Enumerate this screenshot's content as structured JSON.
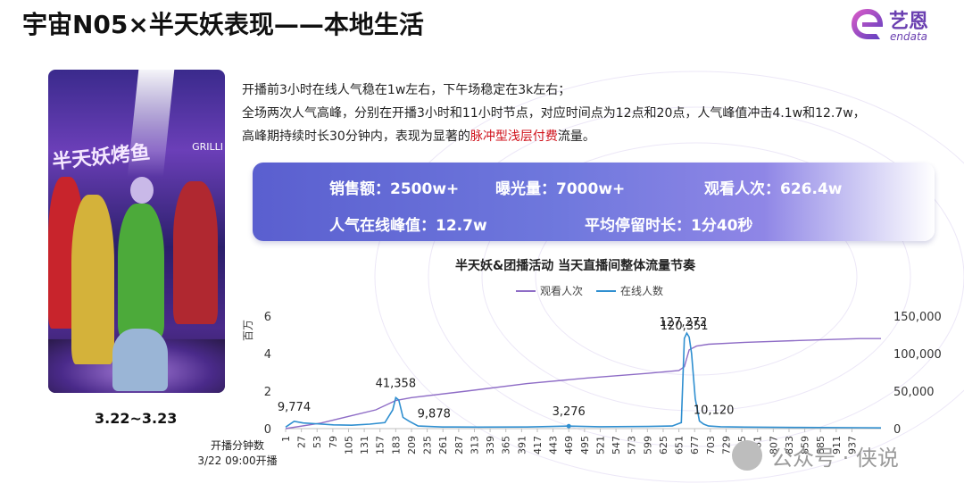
{
  "header": {
    "title": "宇宙N05×半天妖表现——本地生活",
    "logo_cn": "艺恩",
    "logo_en": "endata"
  },
  "photo": {
    "sign_text": "半天妖烤鱼",
    "grill_text": "GRILLI",
    "date_label": "3.22~3.23"
  },
  "description": {
    "line1": "开播前3小时在线人气稳在1w左右，下午场稳定在3k左右；",
    "line2": "全场两次人气高峰，分别在开播3小时和11小时节点，对应时间点为12点和20点，人气峰值冲击4.1w和12.7w，",
    "line3_a": "高峰期持续时长30分钟内，表现为显著的",
    "line3_hl": "脉冲型浅层付费",
    "line3_b": "流量。"
  },
  "kpis": {
    "sales": "销售额：2500w+",
    "exposure": "曝光量：7000w+",
    "views": "观看人次：626.4w",
    "peak_online": "人气在线峰值：12.7w",
    "avg_stay": "平均停留时长：1分40秒"
  },
  "watermark": {
    "text": "公众号 · 侠说"
  },
  "colors": {
    "kpi_band": "#6f78dd",
    "views_line": "#8e6cc6",
    "online_line": "#2f8fd0",
    "highlight": "#d0121b"
  },
  "chart_data": {
    "type": "line",
    "title": "半天妖&团播活动 当天直播间整体流量节奏",
    "legend": [
      "观看人次",
      "在线人数"
    ],
    "legend_position": "top",
    "y_left": {
      "unit_label": "百万",
      "range": [
        0,
        6
      ],
      "ticks": [
        "0",
        "2",
        "4",
        "6"
      ]
    },
    "y_right": {
      "range": [
        0,
        150000
      ],
      "ticks": [
        "0",
        "50,000",
        "100,000",
        "150,000"
      ]
    },
    "x_axis": {
      "label_line1": "开播分钟数",
      "label_line2": "3/22 09:00开播",
      "range": [
        1,
        985
      ],
      "ticks": [
        "1",
        "27",
        "53",
        "79",
        "105",
        "131",
        "157",
        "183",
        "209",
        "235",
        "261",
        "287",
        "313",
        "339",
        "365",
        "391",
        "417",
        "443",
        "469",
        "495",
        "521",
        "547",
        "573",
        "599",
        "625",
        "651",
        "677",
        "703",
        "729",
        "755",
        "781",
        "807",
        "833",
        "859",
        "885",
        "911",
        "937"
      ]
    },
    "series": [
      {
        "name": "观看人次",
        "axis": "left",
        "x": [
          1,
          60,
          150,
          183,
          209,
          300,
          400,
          500,
          600,
          651,
          660,
          668,
          680,
          700,
          760,
          850,
          950,
          985
        ],
        "y": [
          0.0,
          0.3,
          1.0,
          1.5,
          1.65,
          2.0,
          2.4,
          2.7,
          2.95,
          3.1,
          3.3,
          4.2,
          4.4,
          4.5,
          4.6,
          4.7,
          4.8,
          4.8
        ]
      },
      {
        "name": "在线人数",
        "axis": "right",
        "x": [
          1,
          15,
          30,
          50,
          80,
          110,
          140,
          165,
          178,
          183,
          188,
          195,
          205,
          220,
          260,
          320,
          400,
          469,
          520,
          600,
          640,
          655,
          660,
          664,
          668,
          672,
          678,
          685,
          692,
          700,
          720,
          760,
          850,
          950,
          985
        ],
        "y": [
          2000,
          9774,
          7500,
          6500,
          5000,
          4500,
          6000,
          8000,
          25000,
          41358,
          38000,
          15000,
          9878,
          3500,
          2200,
          2000,
          2200,
          3276,
          2500,
          2800,
          3500,
          8000,
          120351,
          127272,
          122000,
          100000,
          40000,
          10120,
          6000,
          3500,
          2500,
          2000,
          1500,
          1200,
          1000
        ]
      }
    ],
    "annotations": [
      {
        "series": "在线人数",
        "x": 15,
        "y": 9774,
        "label": "9,774"
      },
      {
        "series": "在线人数",
        "x": 183,
        "y": 41358,
        "label": "41,358"
      },
      {
        "series": "在线人数",
        "x": 205,
        "y": 9878,
        "label": "9,878"
      },
      {
        "series": "在线人数",
        "x": 469,
        "y": 3276,
        "label": "3,276"
      },
      {
        "series": "在线人数",
        "x": 660,
        "y": 120351,
        "label": "120,351"
      },
      {
        "series": "在线人数",
        "x": 664,
        "y": 127272,
        "label": "127,272"
      },
      {
        "series": "在线人数",
        "x": 685,
        "y": 10120,
        "label": "10,120"
      }
    ]
  }
}
